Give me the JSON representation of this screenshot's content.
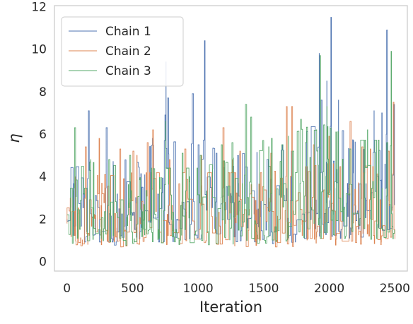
{
  "chart_data": {
    "type": "line",
    "title": "",
    "xlabel": "Iteration",
    "ylabel": "η",
    "xlim": [
      -95,
      2595
    ],
    "ylim": [
      -0.45,
      12.05
    ],
    "xticks": [
      0,
      500,
      1000,
      1500,
      2000,
      2500
    ],
    "yticks": [
      0,
      2,
      4,
      6,
      8,
      10,
      12
    ],
    "grid": false,
    "legend_position": "top-left",
    "x_start": 0,
    "x_end": 2500,
    "series": [
      {
        "name": "Chain 1",
        "color": "#4c72b0",
        "peaks": [
          [
            165,
            7.1
          ],
          [
            300,
            6.3
          ],
          [
            650,
            5.8
          ],
          [
            745,
            6.9
          ],
          [
            755,
            9.4
          ],
          [
            765,
            7.7
          ],
          [
            960,
            7.9
          ],
          [
            1050,
            10.4
          ],
          [
            1140,
            5.1
          ],
          [
            1640,
            5.5
          ],
          [
            1710,
            5.2
          ],
          [
            1920,
            9.8
          ],
          [
            1940,
            7.6
          ],
          [
            1980,
            8.5
          ],
          [
            2010,
            11.5
          ],
          [
            2070,
            7.6
          ],
          [
            2340,
            7.1
          ],
          [
            2400,
            7.0
          ],
          [
            2440,
            10.9
          ],
          [
            2490,
            7.4
          ]
        ],
        "level": [
          [
            0,
            2.0
          ],
          [
            500,
            2.2
          ],
          [
            700,
            2.6
          ],
          [
            1000,
            2.5
          ],
          [
            1300,
            2.3
          ],
          [
            1700,
            2.4
          ],
          [
            1900,
            3.0
          ],
          [
            2100,
            2.8
          ],
          [
            2300,
            2.3
          ],
          [
            2500,
            2.5
          ]
        ]
      },
      {
        "name": "Chain 2",
        "color": "#dd8452",
        "peaks": [
          [
            140,
            5.4
          ],
          [
            245,
            5.8
          ],
          [
            405,
            5.3
          ],
          [
            500,
            5.2
          ],
          [
            530,
            5.0
          ],
          [
            610,
            5.6
          ],
          [
            655,
            6.2
          ],
          [
            780,
            4.8
          ],
          [
            900,
            5.3
          ],
          [
            1025,
            5.0
          ],
          [
            1190,
            6.3
          ],
          [
            1260,
            4.8
          ],
          [
            1320,
            5.2
          ],
          [
            1555,
            5.1
          ],
          [
            1675,
            7.3
          ],
          [
            1710,
            7.3
          ],
          [
            1880,
            5.5
          ],
          [
            2000,
            5.9
          ],
          [
            2155,
            6.6
          ],
          [
            2250,
            5.4
          ],
          [
            2310,
            5.3
          ],
          [
            2450,
            5.2
          ],
          [
            2490,
            7.5
          ]
        ],
        "level": [
          [
            0,
            1.8
          ],
          [
            500,
            1.9
          ],
          [
            1000,
            1.9
          ],
          [
            1500,
            1.9
          ],
          [
            2000,
            2.1
          ],
          [
            2500,
            2.0
          ]
        ]
      },
      {
        "name": "Chain 3",
        "color": "#55a868",
        "peaks": [
          [
            60,
            6.3
          ],
          [
            180,
            4.8
          ],
          [
            320,
            4.8
          ],
          [
            480,
            5.0
          ],
          [
            750,
            6.6
          ],
          [
            880,
            5.1
          ],
          [
            1020,
            5.0
          ],
          [
            1180,
            5.5
          ],
          [
            1260,
            5.6
          ],
          [
            1360,
            7.4
          ],
          [
            1400,
            6.8
          ],
          [
            1490,
            5.7
          ],
          [
            1560,
            5.8
          ],
          [
            1640,
            5.5
          ],
          [
            1720,
            5.2
          ],
          [
            1780,
            6.7
          ],
          [
            1820,
            5.6
          ],
          [
            1900,
            6.2
          ],
          [
            1930,
            9.7
          ],
          [
            1980,
            7.3
          ],
          [
            2050,
            6.1
          ],
          [
            2160,
            5.3
          ],
          [
            2290,
            6.2
          ],
          [
            2440,
            5.6
          ],
          [
            2470,
            9.9
          ]
        ],
        "level": [
          [
            0,
            2.2
          ],
          [
            500,
            2.0
          ],
          [
            1000,
            2.0
          ],
          [
            1500,
            2.4
          ],
          [
            1900,
            3.0
          ],
          [
            2200,
            2.6
          ],
          [
            2500,
            2.6
          ]
        ]
      }
    ]
  }
}
